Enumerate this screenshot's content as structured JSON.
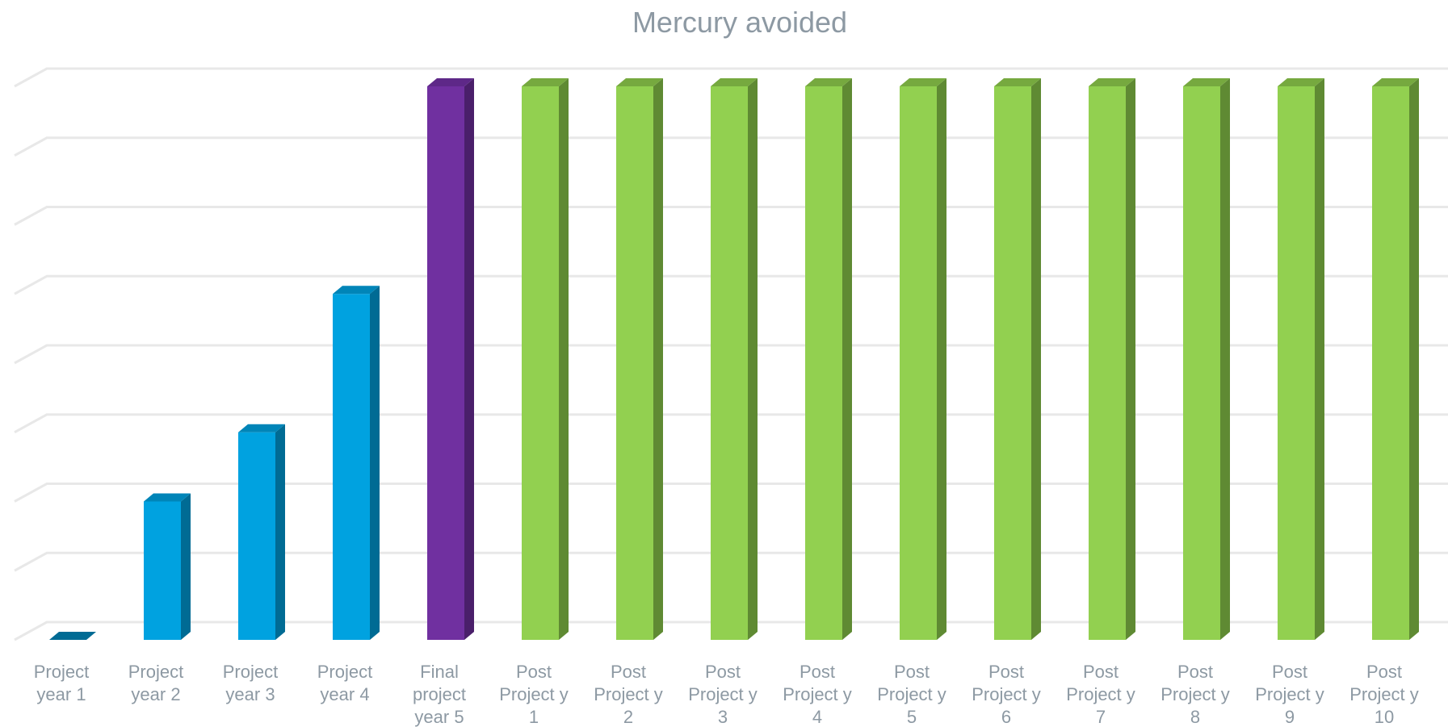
{
  "chart_data": {
    "type": "bar",
    "title": "Mercury avoided",
    "xlabel": "",
    "ylabel": "",
    "three_d": true,
    "grid": true,
    "ylim": [
      0,
      8
    ],
    "categories": [
      [
        "Project",
        "year 1"
      ],
      [
        "Project",
        "year 2"
      ],
      [
        "Project",
        "year 3"
      ],
      [
        "Project",
        "year 4"
      ],
      [
        "Final",
        "project",
        "year 5"
      ],
      [
        "Post",
        "Project y",
        "1"
      ],
      [
        "Post",
        "Project y",
        "2"
      ],
      [
        "Post",
        "Project y",
        "3"
      ],
      [
        "Post",
        "Project y",
        "4"
      ],
      [
        "Post",
        "Project y",
        "5"
      ],
      [
        "Post",
        "Project y",
        "6"
      ],
      [
        "Post",
        "Project y",
        "7"
      ],
      [
        "Post",
        "Project y",
        "8"
      ],
      [
        "Post",
        "Project y",
        "9"
      ],
      [
        "Post",
        "Project y",
        "10"
      ]
    ],
    "values": [
      0,
      2,
      3,
      5,
      8,
      8,
      8,
      8,
      8,
      8,
      8,
      8,
      8,
      8,
      8
    ],
    "bar_groups": [
      "project",
      "project",
      "project",
      "project",
      "final",
      "post",
      "post",
      "post",
      "post",
      "post",
      "post",
      "post",
      "post",
      "post",
      "post"
    ],
    "colors": {
      "project": {
        "front": "#00a2e0",
        "side": "#006b94",
        "top": "#0085b8"
      },
      "final": {
        "front": "#7030a0",
        "side": "#4a1f6a",
        "top": "#5e2888"
      },
      "post": {
        "front": "#92d050",
        "side": "#5f8a33",
        "top": "#76a93f"
      },
      "grid": "#e8e8e8",
      "text": "#8d99a3"
    }
  }
}
